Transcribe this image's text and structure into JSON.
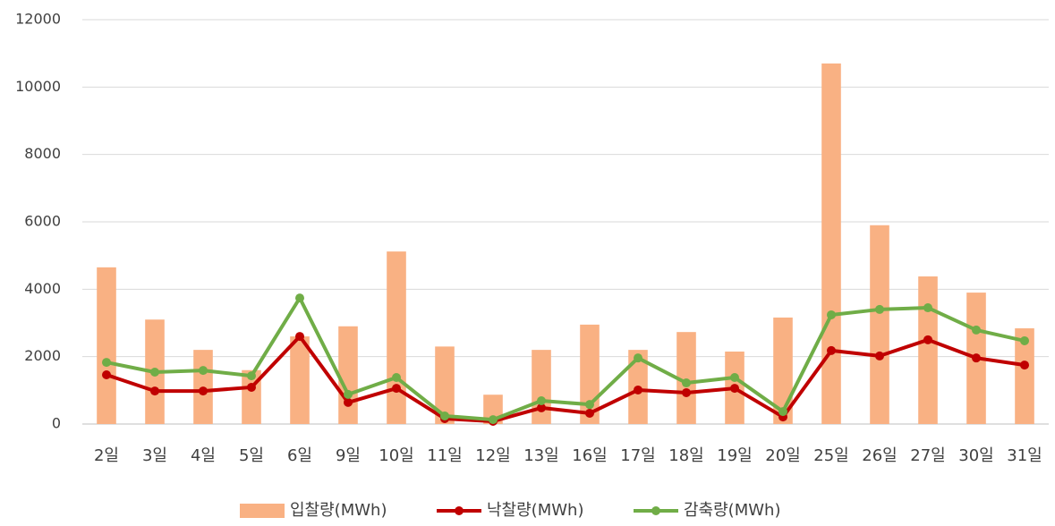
{
  "chart_data": {
    "type": "bar",
    "categories": [
      "2일",
      "3일",
      "4일",
      "5일",
      "6일",
      "9일",
      "10일",
      "11일",
      "12일",
      "13일",
      "16일",
      "17일",
      "18일",
      "19일",
      "20일",
      "25일",
      "26일",
      "27일",
      "30일",
      "31일"
    ],
    "series": [
      {
        "name": "입찰량(MWh)",
        "type": "bar",
        "color": "#f9b183",
        "values": [
          4650,
          3100,
          2200,
          1600,
          2600,
          2900,
          5120,
          2300,
          870,
          2200,
          2950,
          2200,
          2730,
          2150,
          3160,
          10700,
          5900,
          4380,
          3900,
          2840
        ]
      },
      {
        "name": "낙찰량(MWh)",
        "type": "line",
        "color": "#c00000",
        "values": [
          1460,
          980,
          980,
          1090,
          2600,
          640,
          1060,
          160,
          80,
          480,
          320,
          1010,
          930,
          1060,
          210,
          2180,
          2020,
          2500,
          1960,
          1750
        ]
      },
      {
        "name": "감축량(MWh)",
        "type": "line",
        "color": "#70ad47",
        "values": [
          1830,
          1540,
          1590,
          1430,
          3740,
          880,
          1380,
          240,
          130,
          690,
          580,
          1960,
          1220,
          1380,
          370,
          3240,
          3400,
          3450,
          2790,
          2470
        ]
      }
    ],
    "ylim": [
      0,
      12000
    ],
    "yticks": [
      0,
      2000,
      4000,
      6000,
      8000,
      10000,
      12000
    ],
    "grid": true,
    "legend": "bottom"
  }
}
